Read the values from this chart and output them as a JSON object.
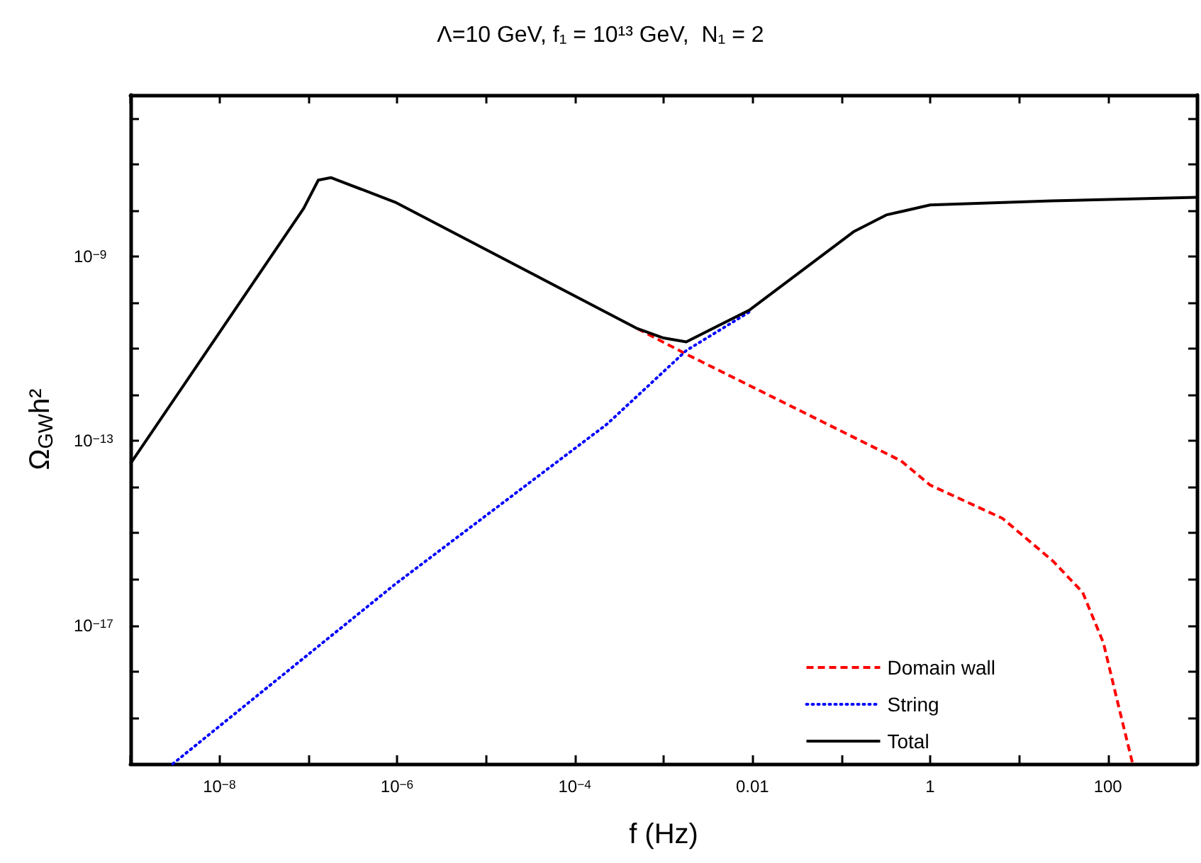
{
  "chart_data": {
    "type": "line",
    "title": "Λ=10 GeV, f₁ = 10¹³ GeV,  N₁ = 2",
    "xlabel": "f (Hz)",
    "ylabel": "Ω$_{GW}$h²",
    "log": "xy",
    "grid": false,
    "legend": "bottom right",
    "marker": "none",
    "xlim": [
      1e-09,
      1000
    ],
    "ylim": [
      1e-20,
      3.16e-06
    ],
    "xticks": [
      {
        "value": 1e-09,
        "label": null
      },
      {
        "value": 1e-08,
        "label": "10$^{−8}$"
      },
      {
        "value": 1e-07,
        "label": null
      },
      {
        "value": 1e-06,
        "label": "10$^{−6}$"
      },
      {
        "value": 1e-05,
        "label": null
      },
      {
        "value": 0.0001,
        "label": "10$^{−4}$"
      },
      {
        "value": 0.001,
        "label": null
      },
      {
        "value": 0.01,
        "label": "0.01"
      },
      {
        "value": 0.1,
        "label": null
      },
      {
        "value": 1,
        "label": "1"
      },
      {
        "value": 10,
        "label": null
      },
      {
        "value": 100,
        "label": "100"
      }
    ],
    "yticks": [
      {
        "value": 1e-19,
        "label": null
      },
      {
        "value": 1e-18,
        "label": null
      },
      {
        "value": 1e-17,
        "label": "10$^{−17}$"
      },
      {
        "value": 1e-16,
        "label": null
      },
      {
        "value": 1e-15,
        "label": null
      },
      {
        "value": 1e-14,
        "label": null
      },
      {
        "value": 1e-13,
        "label": "10$^{−13}$"
      },
      {
        "value": 1e-12,
        "label": null
      },
      {
        "value": 1e-11,
        "label": null
      },
      {
        "value": 1e-10,
        "label": null
      },
      {
        "value": 1e-09,
        "label": "10$^{−9}$"
      },
      {
        "value": 1e-08,
        "label": null
      },
      {
        "value": 1e-07,
        "label": null
      },
      {
        "value": 1e-06,
        "label": null
      }
    ],
    "series": [
      {
        "name": "Domain wall",
        "color": "#ff0000",
        "line_style": "dashed",
        "x": [
          0.00051,
          0.0018,
          0.47,
          1.0,
          6.5,
          24,
          52,
          89,
          130,
          190
        ],
        "values": [
          2.7e-11,
          7.6e-12,
          3.7e-14,
          1.1e-14,
          2.1e-15,
          2.5e-16,
          5.2e-17,
          4.2e-18,
          2e-19,
          1e-20
        ]
      },
      {
        "name": "String",
        "color": "#0000ff",
        "line_style": "dotted",
        "x": [
          3e-09,
          9.5e-07,
          0.00023,
          0.0018,
          0.0093
        ],
        "values": [
          1e-20,
          7.8e-17,
          2.3e-13,
          9.1e-12,
          6.3e-11
        ]
      },
      {
        "name": "Total",
        "color": "#000000",
        "line_style": "solid",
        "x": [
          1e-09,
          8.9e-08,
          1.3e-07,
          1.8e-07,
          9.5e-07,
          0.00051,
          0.001,
          0.0018,
          0.0093,
          0.14,
          0.32,
          1.0,
          23,
          1000
        ],
        "values": [
          3.2e-14,
          1.1e-08,
          4.5e-08,
          5.1e-08,
          1.5e-08,
          2.7e-11,
          1.7e-11,
          1.4e-11,
          6.9e-11,
          3.5e-09,
          7.9e-09,
          1.3e-08,
          1.6e-08,
          1.9e-08
        ]
      }
    ]
  }
}
